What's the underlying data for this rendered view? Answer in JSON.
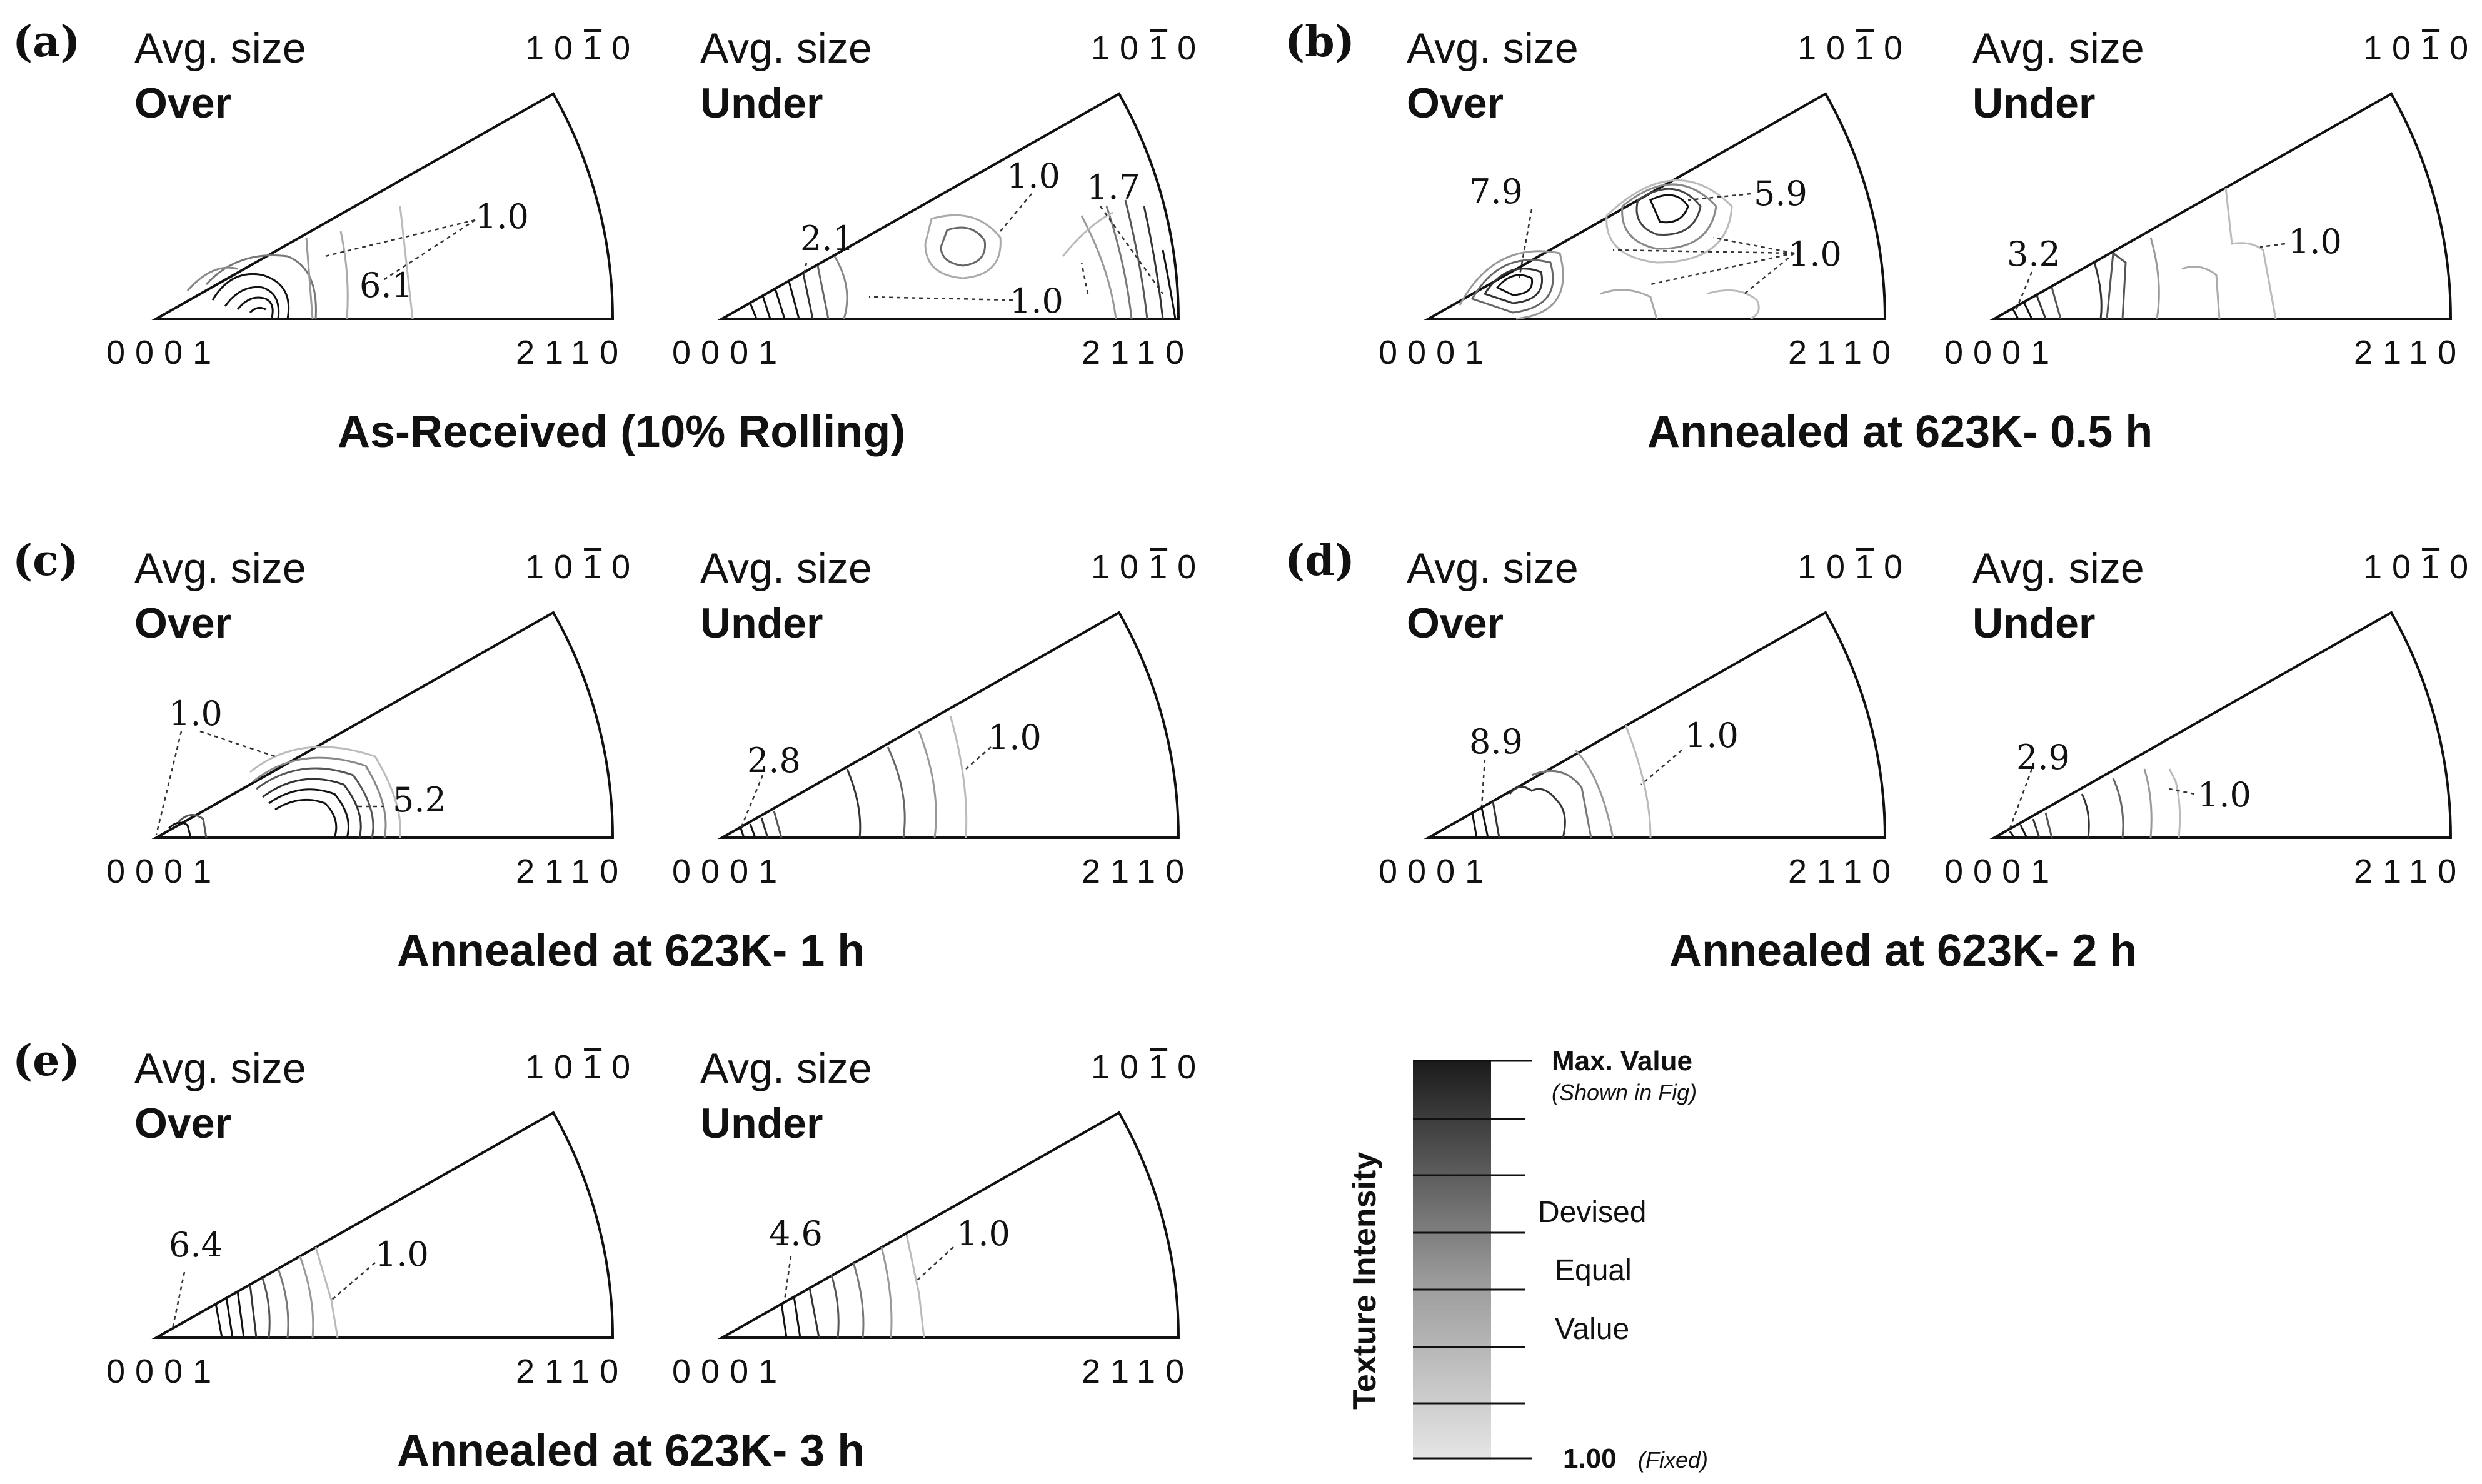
{
  "figure": {
    "labels": {
      "avg_size": "Avg. size",
      "over": "Over",
      "under": "Under",
      "corner_top": "1010",
      "corner_top_bar_index": 2,
      "corner_left": "0001",
      "corner_right": "2110"
    },
    "panels": [
      {
        "id": "a",
        "label": "(a)",
        "condition": "As-Received (10% Rolling)",
        "over": {
          "values": [
            "1.0",
            "6.1"
          ]
        },
        "under": {
          "values": [
            "2.1",
            "1.0",
            "1.7",
            "1.0"
          ]
        }
      },
      {
        "id": "b",
        "label": "(b)",
        "condition": "Annealed at 623K- 0.5 h",
        "over": {
          "values": [
            "7.9",
            "5.9",
            "1.0"
          ]
        },
        "under": {
          "values": [
            "3.2",
            "1.0"
          ]
        }
      },
      {
        "id": "c",
        "label": "(c)",
        "condition": "Annealed at 623K- 1 h",
        "over": {
          "values": [
            "1.0",
            "5.2"
          ]
        },
        "under": {
          "values": [
            "2.8",
            "1.0"
          ]
        }
      },
      {
        "id": "d",
        "label": "(d)",
        "condition": "Annealed at 623K- 2 h",
        "over": {
          "values": [
            "8.9",
            "1.0"
          ]
        },
        "under": {
          "values": [
            "2.9",
            "1.0"
          ]
        }
      },
      {
        "id": "e",
        "label": "(e)",
        "condition": "Annealed at 623K- 3 h",
        "over": {
          "values": [
            "6.4",
            "1.0"
          ]
        },
        "under": {
          "values": [
            "4.6",
            "1.0"
          ]
        }
      }
    ],
    "legend": {
      "title": "Texture Intensity",
      "max_label": "Max. Value",
      "max_note": "(Shown in Fig)",
      "mid_line1": "Devised",
      "mid_line2": "Equal",
      "mid_line3": "Value",
      "min_label": "1.00",
      "min_note": "(Fixed)"
    }
  }
}
